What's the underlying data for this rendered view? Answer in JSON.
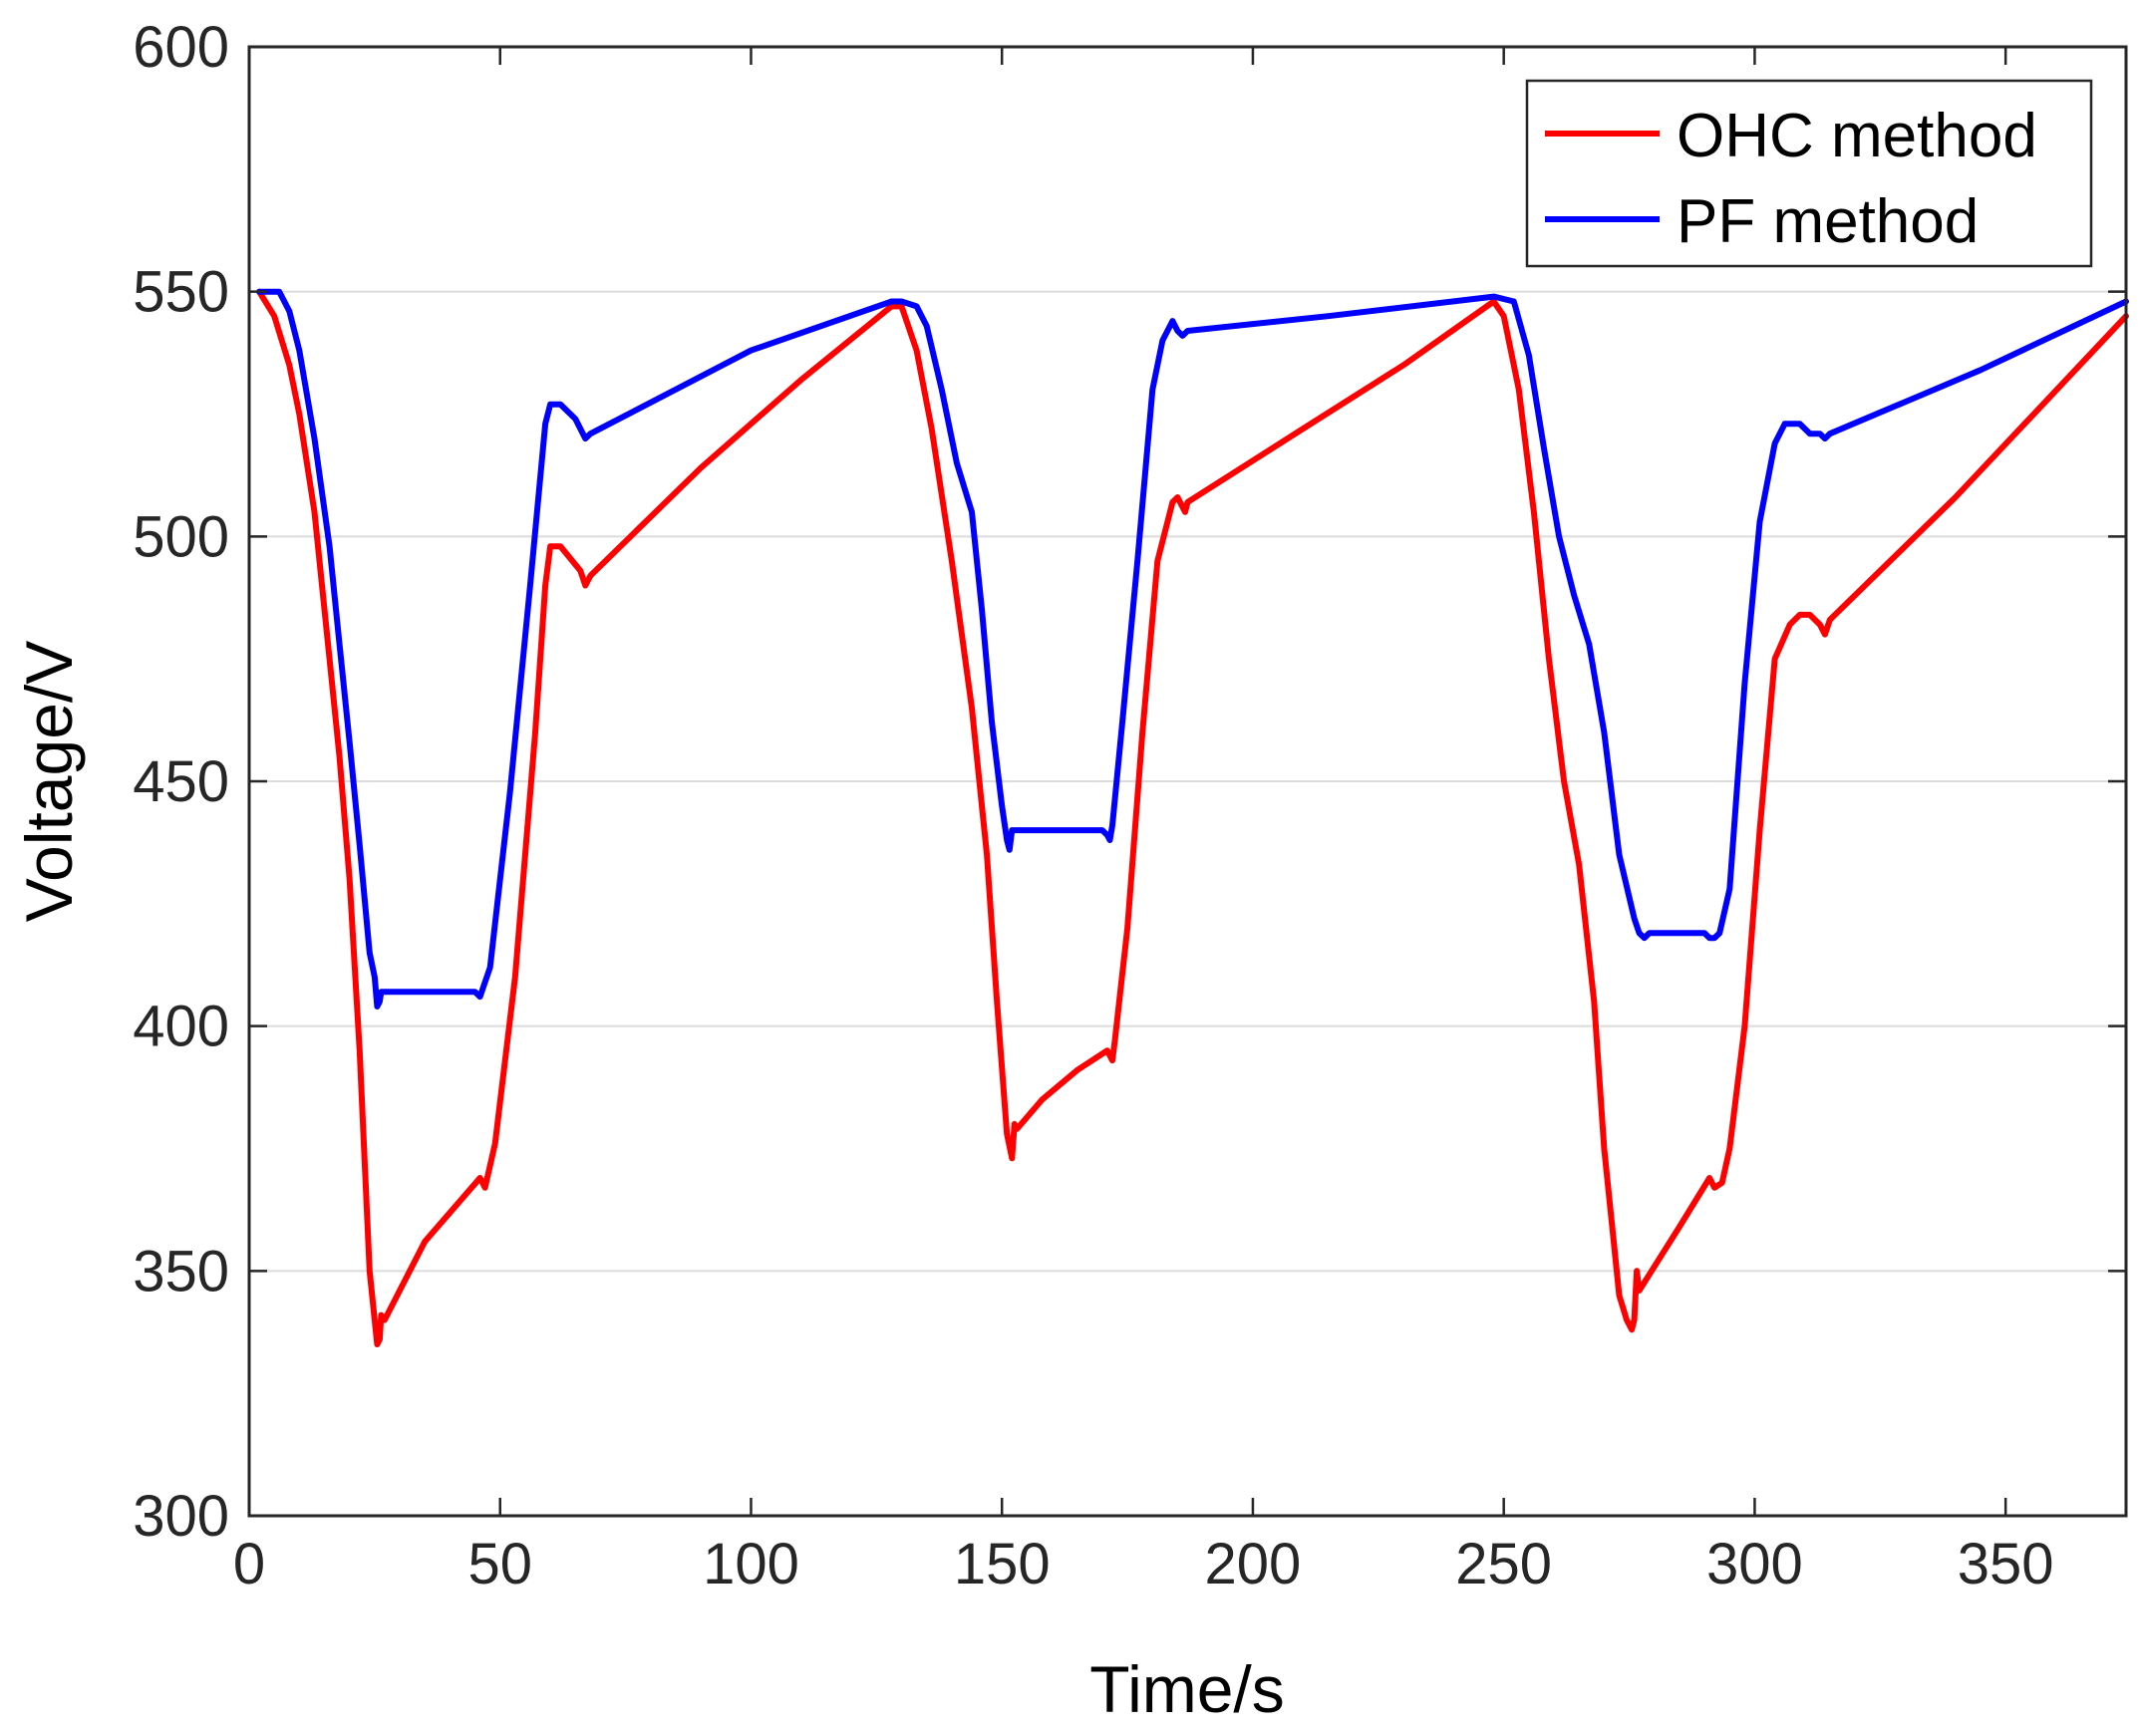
{
  "chart_data": {
    "type": "line",
    "title": "",
    "xlabel": "Time/s",
    "ylabel": "Voltage/V",
    "xlim": [
      0,
      374
    ],
    "ylim": [
      300,
      600
    ],
    "xticks": [
      0,
      50,
      100,
      150,
      200,
      250,
      300,
      350
    ],
    "yticks": [
      300,
      350,
      400,
      450,
      500,
      550,
      600
    ],
    "grid": "horizontal",
    "legend_position": "top-right",
    "series": [
      {
        "name": "OHC method",
        "color": "#ff0000",
        "points": [
          [
            2,
            550
          ],
          [
            5,
            545
          ],
          [
            8,
            535
          ],
          [
            10,
            525
          ],
          [
            13,
            505
          ],
          [
            16,
            475
          ],
          [
            18,
            455
          ],
          [
            20,
            430
          ],
          [
            22,
            395
          ],
          [
            24,
            350
          ],
          [
            25.5,
            335
          ],
          [
            26,
            336
          ],
          [
            26.3,
            341
          ],
          [
            27,
            340
          ],
          [
            35,
            356
          ],
          [
            46,
            369
          ],
          [
            47,
            367
          ],
          [
            49,
            376
          ],
          [
            53,
            410
          ],
          [
            57,
            460
          ],
          [
            59,
            490
          ],
          [
            60,
            498
          ],
          [
            62,
            498
          ],
          [
            66,
            493
          ],
          [
            67,
            490
          ],
          [
            68,
            492
          ],
          [
            90,
            514
          ],
          [
            110,
            532
          ],
          [
            128,
            547
          ],
          [
            130,
            547
          ],
          [
            133,
            538
          ],
          [
            136,
            522
          ],
          [
            140,
            495
          ],
          [
            144,
            465
          ],
          [
            147,
            435
          ],
          [
            149,
            405
          ],
          [
            151,
            378
          ],
          [
            152,
            373
          ],
          [
            152.5,
            380
          ],
          [
            153,
            379
          ],
          [
            158,
            385
          ],
          [
            165,
            391
          ],
          [
            171,
            395
          ],
          [
            172,
            393
          ],
          [
            172.5,
            397
          ],
          [
            175,
            420
          ],
          [
            178,
            460
          ],
          [
            181,
            495
          ],
          [
            184,
            507
          ],
          [
            185,
            508
          ],
          [
            186,
            506
          ],
          [
            186.5,
            505
          ],
          [
            187,
            507
          ],
          [
            210,
            522
          ],
          [
            230,
            535
          ],
          [
            248,
            548
          ],
          [
            250,
            545
          ],
          [
            253,
            530
          ],
          [
            256,
            505
          ],
          [
            259,
            475
          ],
          [
            262,
            450
          ],
          [
            265,
            433
          ],
          [
            268,
            405
          ],
          [
            270,
            375
          ],
          [
            272,
            355
          ],
          [
            273,
            345
          ],
          [
            274.5,
            340
          ],
          [
            275.5,
            338
          ],
          [
            276,
            340
          ],
          [
            276.5,
            350
          ],
          [
            277,
            346
          ],
          [
            285,
            359
          ],
          [
            291,
            369
          ],
          [
            292,
            367
          ],
          [
            293.5,
            368
          ],
          [
            295,
            375
          ],
          [
            298,
            400
          ],
          [
            301,
            440
          ],
          [
            304,
            475
          ],
          [
            307,
            482
          ],
          [
            309,
            484
          ],
          [
            311,
            484
          ],
          [
            313,
            482
          ],
          [
            314,
            480
          ],
          [
            315,
            483
          ],
          [
            340,
            508
          ],
          [
            374,
            545
          ]
        ]
      },
      {
        "name": "PF method",
        "color": "#0000ff",
        "points": [
          [
            2,
            550
          ],
          [
            6,
            550
          ],
          [
            8,
            546
          ],
          [
            10,
            538
          ],
          [
            13,
            520
          ],
          [
            16,
            498
          ],
          [
            18,
            478
          ],
          [
            20,
            458
          ],
          [
            22,
            437
          ],
          [
            24,
            415
          ],
          [
            25,
            410
          ],
          [
            25.5,
            404
          ],
          [
            26,
            405
          ],
          [
            26.3,
            407
          ],
          [
            45,
            407
          ],
          [
            46,
            406
          ],
          [
            48,
            412
          ],
          [
            52,
            448
          ],
          [
            56,
            490
          ],
          [
            59,
            523
          ],
          [
            60,
            527
          ],
          [
            62,
            527
          ],
          [
            65,
            524
          ],
          [
            67,
            520
          ],
          [
            68,
            521
          ],
          [
            100,
            538
          ],
          [
            128,
            548
          ],
          [
            130,
            548
          ],
          [
            133,
            547
          ],
          [
            135,
            543
          ],
          [
            138,
            530
          ],
          [
            141,
            515
          ],
          [
            144,
            505
          ],
          [
            146,
            485
          ],
          [
            148,
            462
          ],
          [
            150,
            445
          ],
          [
            151,
            438
          ],
          [
            151.5,
            436
          ],
          [
            152,
            440
          ],
          [
            153,
            440
          ],
          [
            170,
            440
          ],
          [
            171,
            439
          ],
          [
            171.5,
            438
          ],
          [
            172,
            441
          ],
          [
            174,
            462
          ],
          [
            177,
            495
          ],
          [
            180,
            530
          ],
          [
            182,
            540
          ],
          [
            184,
            544
          ],
          [
            185,
            542
          ],
          [
            186,
            541
          ],
          [
            187,
            542
          ],
          [
            215,
            545
          ],
          [
            248,
            549
          ],
          [
            252,
            548
          ],
          [
            255,
            537
          ],
          [
            258,
            518
          ],
          [
            261,
            500
          ],
          [
            264,
            488
          ],
          [
            267,
            478
          ],
          [
            270,
            460
          ],
          [
            273,
            435
          ],
          [
            276,
            422
          ],
          [
            277,
            419
          ],
          [
            278,
            418
          ],
          [
            279,
            419
          ],
          [
            290,
            419
          ],
          [
            291,
            418
          ],
          [
            292,
            418
          ],
          [
            293,
            419
          ],
          [
            295,
            428
          ],
          [
            298,
            470
          ],
          [
            301,
            503
          ],
          [
            304,
            519
          ],
          [
            306,
            523
          ],
          [
            309,
            523
          ],
          [
            311,
            521
          ],
          [
            313,
            521
          ],
          [
            314,
            520
          ],
          [
            315,
            521
          ],
          [
            345,
            534
          ],
          [
            374,
            548
          ]
        ]
      }
    ]
  }
}
